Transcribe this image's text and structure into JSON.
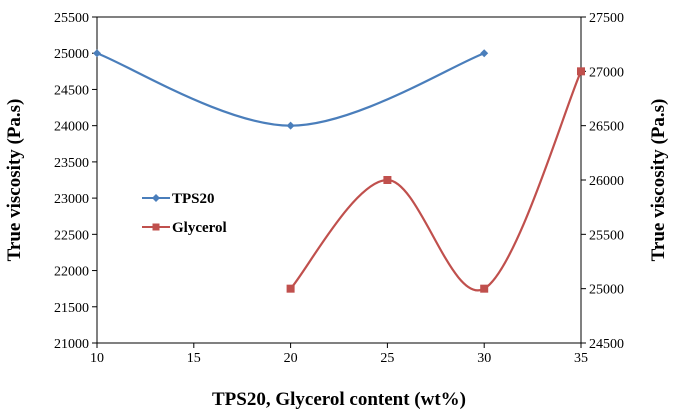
{
  "chart_data": {
    "type": "line",
    "xlabel": "TPS20, Glycerol content (wt%)",
    "ylabel_left": "True viscosity (Pa.s)",
    "ylabel_right": "True viscosity (Pa.s)",
    "x_ticks": [
      10,
      15,
      20,
      25,
      30,
      35
    ],
    "xlim": [
      10,
      35
    ],
    "ylim_left": [
      21000,
      25500
    ],
    "ylim_right": [
      24500,
      27500
    ],
    "y_ticks_left": [
      21000,
      21500,
      22000,
      22500,
      23000,
      23500,
      24000,
      24500,
      25000,
      25500
    ],
    "y_ticks_right": [
      24500,
      25000,
      25500,
      26000,
      26500,
      27000,
      27500
    ],
    "grid": false,
    "legend_position": "center-left",
    "series": [
      {
        "name": "TPS20",
        "axis": "left",
        "color": "#4a7ebb",
        "marker": "diamond",
        "x": [
          10,
          20,
          30
        ],
        "y": [
          25000,
          24000,
          25000
        ]
      },
      {
        "name": "Glycerol",
        "axis": "right",
        "color": "#c0504d",
        "marker": "square",
        "x": [
          20,
          25,
          30,
          35
        ],
        "y": [
          25000,
          26000,
          25000,
          27000
        ]
      }
    ]
  }
}
